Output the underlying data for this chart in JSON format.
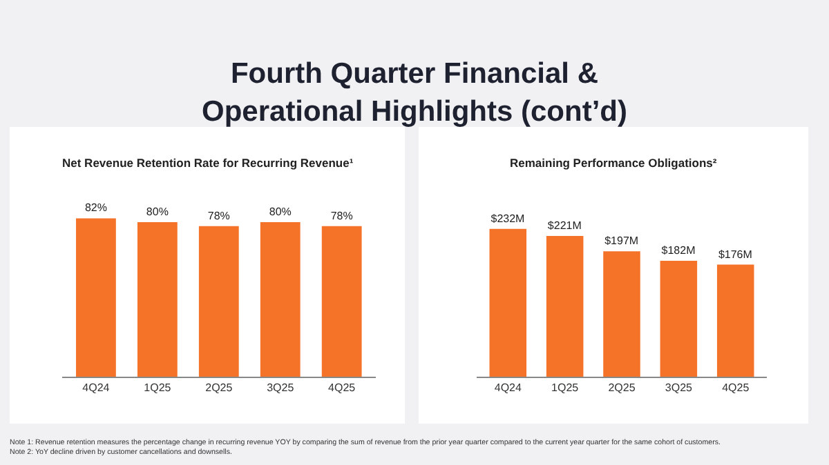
{
  "chart_data": [
    {
      "type": "other",
      "title": "Fourth Quarter Financial & Operational Highlights (cont’d)"
    },
    {
      "type": "bar",
      "title": "Net Revenue Retention Rate for Recurring Revenue¹",
      "categories": [
        "4Q24",
        "1Q25",
        "2Q25",
        "3Q25",
        "4Q25"
      ],
      "values": [
        82,
        80,
        78,
        80,
        78
      ],
      "value_labels": [
        "82%",
        "80%",
        "78%",
        "80%",
        "78%"
      ],
      "color": "#f47328"
    },
    {
      "type": "bar",
      "title": "Remaining Performance Obligations²",
      "categories": [
        "4Q24",
        "1Q25",
        "2Q25",
        "3Q25",
        "4Q25"
      ],
      "values": [
        232,
        221,
        197,
        182,
        176
      ],
      "value_labels": [
        "$232M",
        "$221M",
        "$197M",
        "$182M",
        "$176M"
      ],
      "color": "#f47328"
    },
    {
      "type": "other",
      "annotations": [
        "Note 1: Revenue retention measures the percentage change in recurring revenue YOY by comparing the sum of revenue from the prior year quarter compared to the current year quarter for the same cohort of customers.",
        "Note 2: YoY decline driven by customer cancellations and downsells."
      ]
    }
  ]
}
